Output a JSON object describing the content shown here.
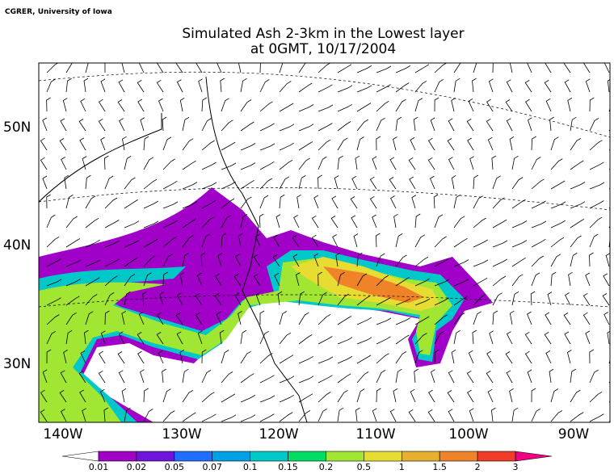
{
  "credit": "CGRER, University of Iowa",
  "title": [
    "Simulated Ash 2-3km in the Lowest layer",
    "at 0GMT, 10/17/2004"
  ],
  "lat_labels": [
    "50N",
    "40N",
    "30N"
  ],
  "lon_labels": [
    "140W",
    "130W",
    "120W",
    "110W",
    "100W",
    "90W"
  ],
  "colorbar": {
    "labels": [
      "0.01",
      "0.02",
      "0.05",
      "0.07",
      "0.1",
      "0.15",
      "0.2",
      "0.5",
      "1",
      "1.5",
      "2",
      "3"
    ],
    "colors": [
      "#a000c8",
      "#6e14dc",
      "#1e6eff",
      "#00a0e6",
      "#00c8c8",
      "#00dc64",
      "#a0e632",
      "#e6dc32",
      "#e6af2d",
      "#f08228",
      "#f03c28"
    ],
    "under_color": "#ffffff",
    "over_color": "#f00082"
  }
}
